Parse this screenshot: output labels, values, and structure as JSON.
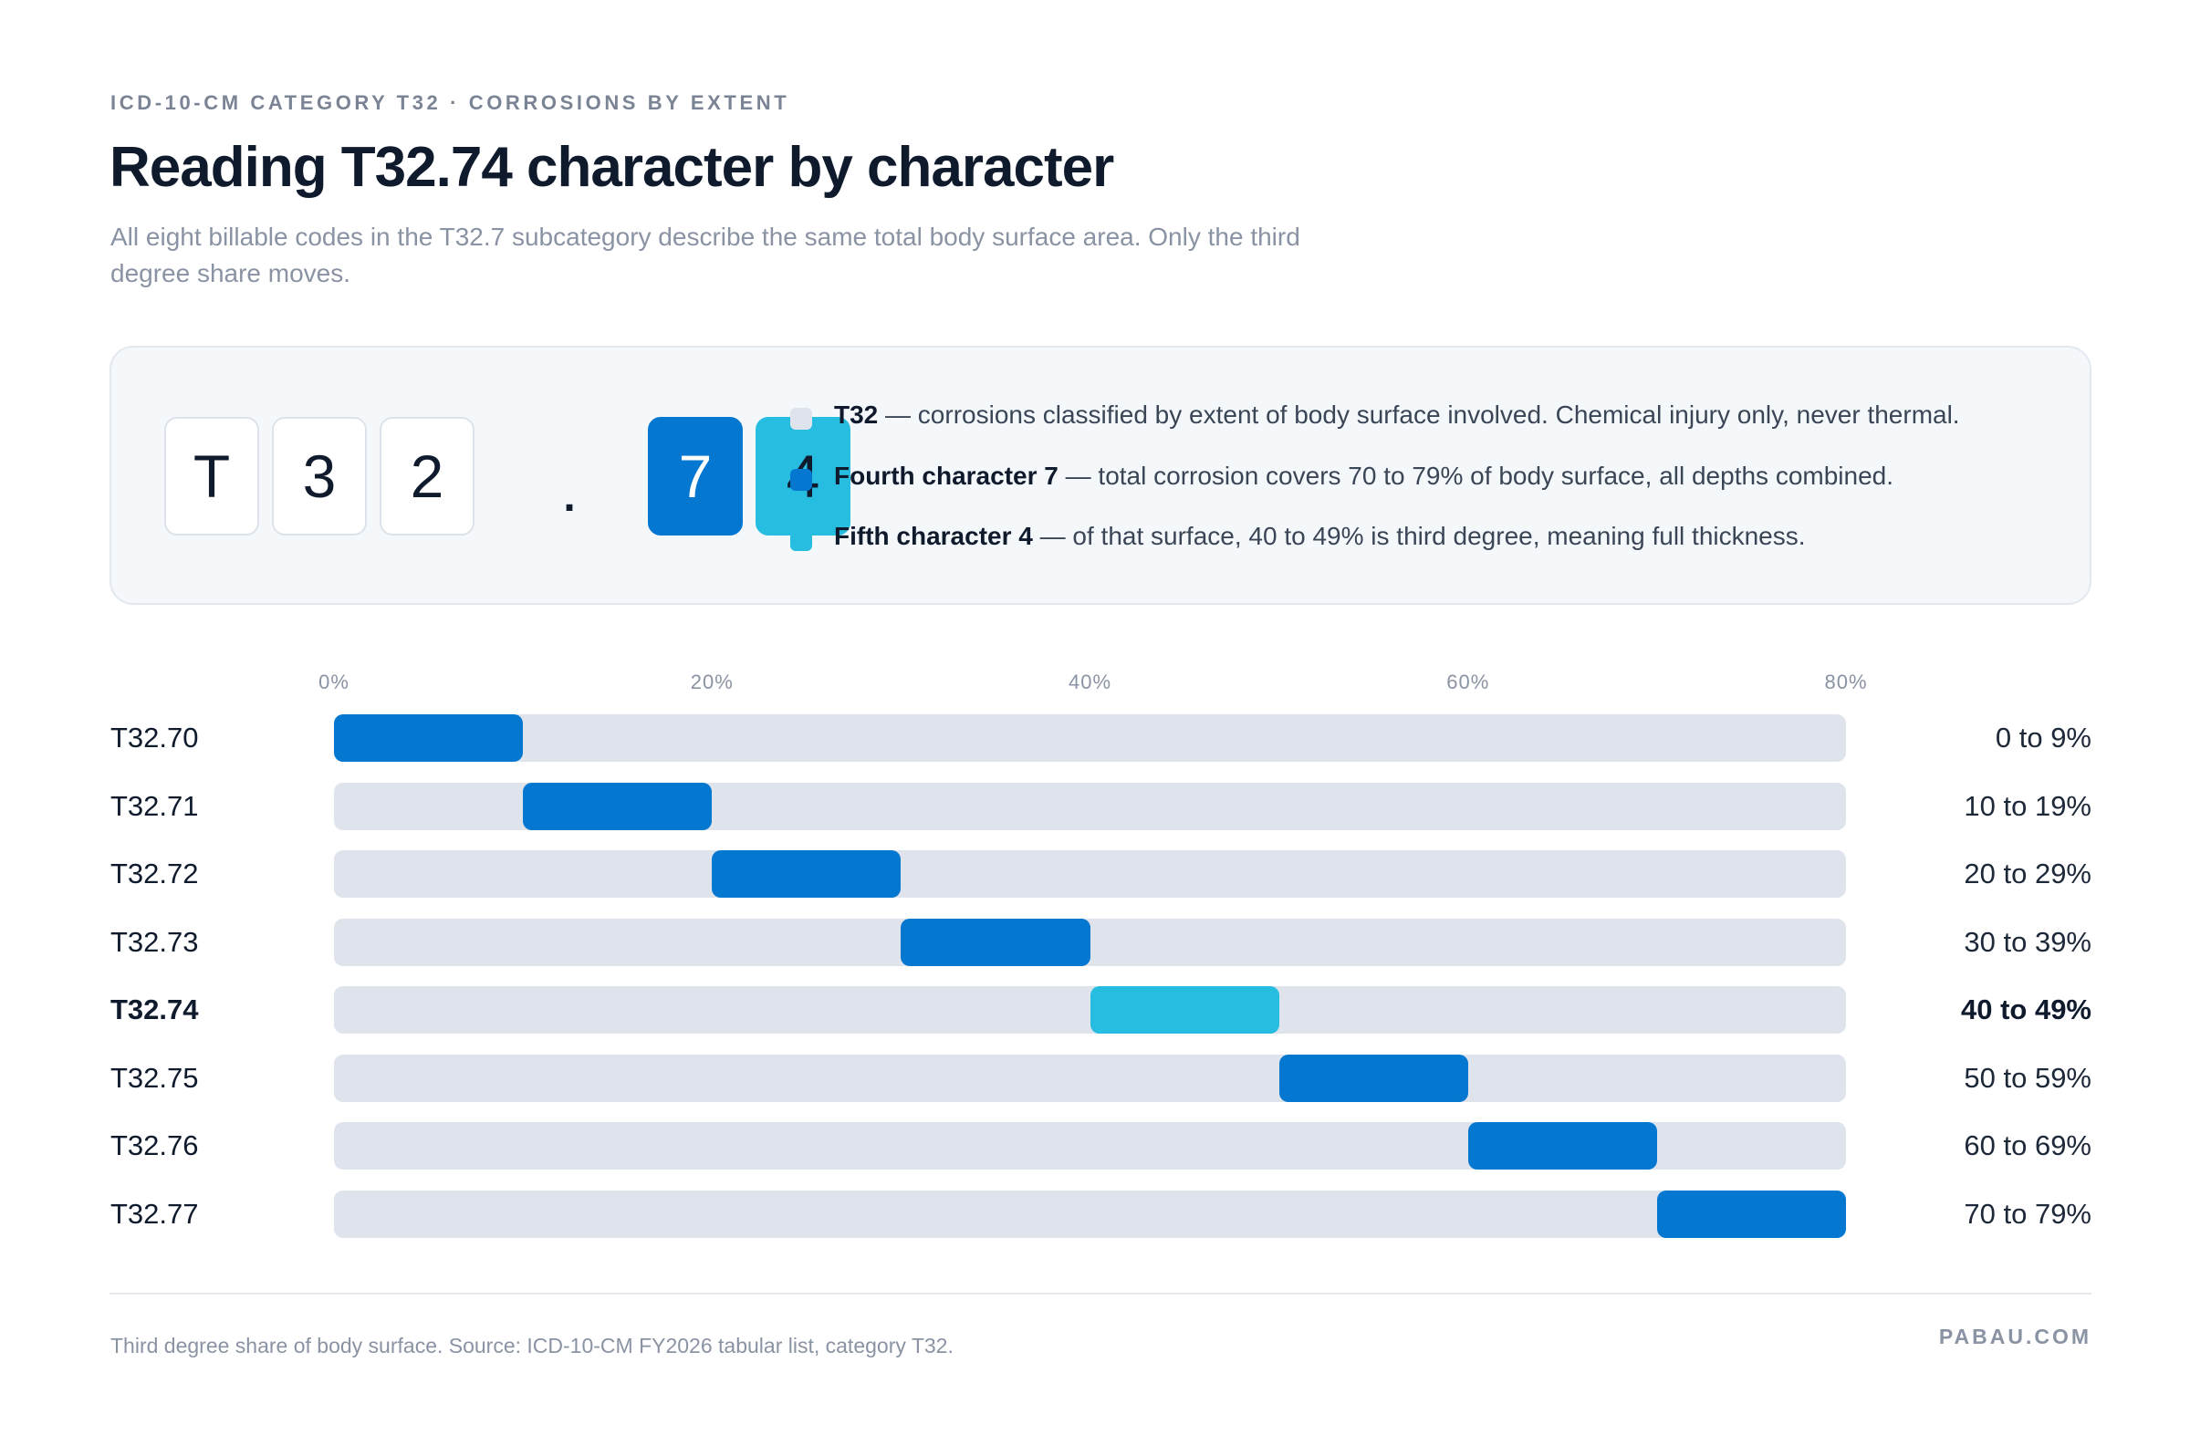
{
  "header": {
    "eyebrow": "ICD-10-CM CATEGORY T32 · CORROSIONS BY EXTENT",
    "title": "Reading T32.74 character by character",
    "subtitle": "All eight billable codes in the T32.7 subcategory describe the same total body surface area. Only the third degree share moves."
  },
  "code_breakdown": {
    "characters": [
      "T",
      "3",
      "2",
      "7",
      "4"
    ],
    "separator": ".",
    "colors": {
      "base_tile": "#ffffff",
      "fourth": "#0477d1",
      "fifth": "#27bde1",
      "category_swatch": "#dfe3ec"
    },
    "legend": [
      {
        "label": "T32",
        "text": " — corrosions classified by extent of body surface involved. Chemical injury only, never thermal.",
        "color": "#dfe3ec"
      },
      {
        "label": "Fourth character 7",
        "text": " — total corrosion covers 70 to 79% of body surface, all depths combined.",
        "color": "#0477d1"
      },
      {
        "label": "Fifth character 4",
        "text": " — of that surface, 40 to 49% is third degree, meaning full thickness.",
        "color": "#27bde1"
      }
    ]
  },
  "chart_data": {
    "type": "bar",
    "orientation": "horizontal-range",
    "xlim": [
      0,
      80
    ],
    "xticks": [
      "0%",
      "20%",
      "40%",
      "60%",
      "80%"
    ],
    "xtick_values": [
      0,
      20,
      40,
      60,
      80
    ],
    "highlight": "T32.74",
    "colors": {
      "bar": "#0477d1",
      "highlight": "#27bde1",
      "track": "#dfe3ec"
    },
    "rows": [
      {
        "code": "T32.70",
        "start": 0,
        "end": 10,
        "range_label": "0 to 9%"
      },
      {
        "code": "T32.71",
        "start": 10,
        "end": 20,
        "range_label": "10 to 19%"
      },
      {
        "code": "T32.72",
        "start": 20,
        "end": 30,
        "range_label": "20 to 29%"
      },
      {
        "code": "T32.73",
        "start": 30,
        "end": 40,
        "range_label": "30 to 39%"
      },
      {
        "code": "T32.74",
        "start": 40,
        "end": 50,
        "range_label": "40 to 49%"
      },
      {
        "code": "T32.75",
        "start": 50,
        "end": 60,
        "range_label": "50 to 59%"
      },
      {
        "code": "T32.76",
        "start": 60,
        "end": 70,
        "range_label": "60 to 69%"
      },
      {
        "code": "T32.77",
        "start": 70,
        "end": 80,
        "range_label": "70 to 79%"
      }
    ]
  },
  "footer": {
    "note": "Third degree share of body surface. Source: ICD-10-CM FY2026 tabular list, category T32.",
    "brand": "PABAU.COM"
  }
}
